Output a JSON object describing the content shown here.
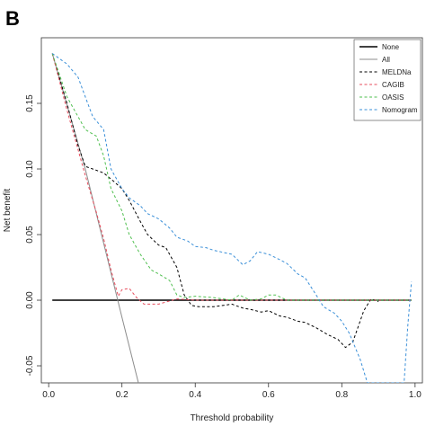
{
  "panel_label": "B",
  "chart_data": {
    "type": "line",
    "xlabel": "Threshold probability",
    "ylabel": "Net benefit",
    "xlim": [
      -0.02,
      1.02
    ],
    "ylim": [
      -0.063,
      0.2
    ],
    "xticks": [
      "0.0",
      "0.2",
      "0.4",
      "0.6",
      "0.8",
      "1.0"
    ],
    "xtick_values": [
      0,
      0.2,
      0.4,
      0.6,
      0.8,
      1.0
    ],
    "yticks": [
      "-0.05",
      "0.00",
      "0.05",
      "0.10",
      "0.15"
    ],
    "ytick_values": [
      -0.05,
      0,
      0.05,
      0.1,
      0.15
    ],
    "legend_position": "top-right",
    "series": [
      {
        "name": "None",
        "color": "#000000",
        "dash": "solid",
        "width": 1.6,
        "x": [
          0.01,
          0.99
        ],
        "y": [
          0,
          0
        ]
      },
      {
        "name": "All",
        "color": "#8c8c8c",
        "dash": "solid",
        "width": 1,
        "x": [
          0.01,
          0.1,
          0.2,
          0.245
        ],
        "y": [
          0.188,
          0.1,
          -0.013,
          -0.063
        ]
      },
      {
        "name": "MELDNa",
        "color": "#000000",
        "dash": "dashed",
        "width": 1,
        "x": [
          0.01,
          0.05,
          0.08,
          0.1,
          0.12,
          0.15,
          0.18,
          0.2,
          0.22,
          0.25,
          0.27,
          0.3,
          0.32,
          0.35,
          0.37,
          0.39,
          0.41,
          0.45,
          0.5,
          0.53,
          0.55,
          0.58,
          0.6,
          0.63,
          0.65,
          0.68,
          0.7,
          0.73,
          0.76,
          0.79,
          0.81,
          0.83,
          0.86,
          0.88,
          0.9
        ],
        "y": [
          0.188,
          0.15,
          0.118,
          0.102,
          0.1,
          0.097,
          0.09,
          0.085,
          0.076,
          0.06,
          0.05,
          0.042,
          0.04,
          0.025,
          0.004,
          -0.004,
          -0.005,
          -0.005,
          -0.003,
          -0.006,
          -0.007,
          -0.009,
          -0.008,
          -0.012,
          -0.013,
          -0.016,
          -0.017,
          -0.021,
          -0.026,
          -0.03,
          -0.036,
          -0.032,
          -0.008,
          0.001,
          -0.001
        ]
      },
      {
        "name": "CAGIB",
        "color": "#e74c5c",
        "dash": "dashed",
        "width": 1,
        "x": [
          0.01,
          0.05,
          0.1,
          0.13,
          0.15,
          0.17,
          0.19,
          0.2,
          0.22,
          0.24,
          0.26,
          0.3,
          0.35,
          0.4,
          0.45,
          0.5,
          0.6,
          0.7,
          0.8,
          0.9,
          0.99
        ],
        "y": [
          0.188,
          0.145,
          0.095,
          0.067,
          0.047,
          0.023,
          0.003,
          0.008,
          0.009,
          0.002,
          -0.003,
          -0.003,
          0.001,
          0,
          0,
          0,
          0,
          0,
          0,
          0,
          0
        ]
      },
      {
        "name": "OASIS",
        "color": "#4fbf4f",
        "dash": "dashed",
        "width": 1,
        "x": [
          0.01,
          0.05,
          0.1,
          0.13,
          0.15,
          0.17,
          0.2,
          0.22,
          0.25,
          0.28,
          0.3,
          0.33,
          0.35,
          0.37,
          0.4,
          0.45,
          0.5,
          0.52,
          0.55,
          0.58,
          0.6,
          0.62,
          0.65,
          0.7,
          0.99
        ],
        "y": [
          0.188,
          0.155,
          0.13,
          0.125,
          0.11,
          0.085,
          0.068,
          0.05,
          0.035,
          0.023,
          0.02,
          0.015,
          0.004,
          0.002,
          0.003,
          0.002,
          0,
          0.004,
          0,
          0.001,
          0.004,
          0.004,
          0,
          0,
          0
        ]
      },
      {
        "name": "Nomogram",
        "color": "#3a8fd8",
        "dash": "dashed",
        "width": 1,
        "x": [
          0.01,
          0.05,
          0.08,
          0.1,
          0.12,
          0.15,
          0.17,
          0.2,
          0.22,
          0.25,
          0.27,
          0.3,
          0.33,
          0.35,
          0.38,
          0.4,
          0.43,
          0.45,
          0.5,
          0.53,
          0.55,
          0.57,
          0.6,
          0.63,
          0.65,
          0.68,
          0.7,
          0.73,
          0.75,
          0.78,
          0.8,
          0.82,
          0.85,
          0.87,
          0.9,
          0.92,
          0.95,
          0.97,
          0.98,
          0.99
        ],
        "y": [
          0.188,
          0.18,
          0.17,
          0.155,
          0.14,
          0.13,
          0.1,
          0.085,
          0.078,
          0.072,
          0.066,
          0.062,
          0.055,
          0.048,
          0.045,
          0.041,
          0.04,
          0.038,
          0.035,
          0.027,
          0.03,
          0.037,
          0.035,
          0.031,
          0.028,
          0.02,
          0.017,
          0.004,
          -0.005,
          -0.01,
          -0.016,
          -0.025,
          -0.045,
          -0.063,
          -0.063,
          -0.063,
          -0.063,
          -0.063,
          -0.02,
          0.014
        ]
      }
    ]
  }
}
